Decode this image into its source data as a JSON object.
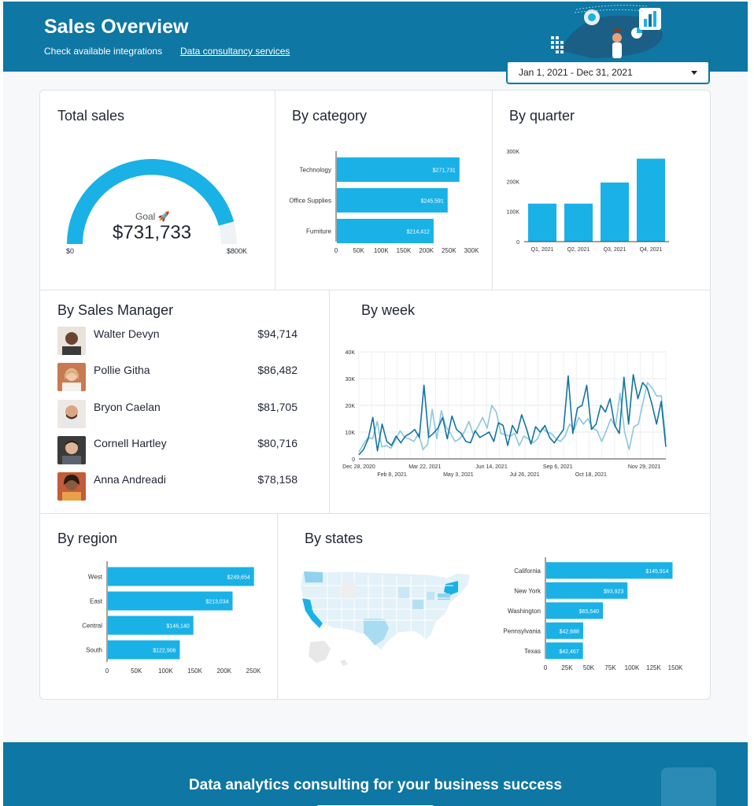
{
  "header": {
    "title": "Sales Overview",
    "link_integrations": "Check available integrations",
    "link_consultancy": "Data consultancy services"
  },
  "date_range": "Jan 1, 2021 - Dec 31, 2021",
  "colors": {
    "header": "#0e77a3",
    "bar": "#1ab1e6",
    "line_dark": "#1275a0",
    "line_light": "#8cc6dc"
  },
  "total_sales": {
    "title": "Total sales",
    "goal_label": "Goal",
    "value": "$731,733",
    "min_label": "$0",
    "max_label": "$800K",
    "progress": 0.9147
  },
  "chart_data": [
    {
      "type": "bar",
      "orientation": "horizontal",
      "title": "By category",
      "categories": [
        "Technology",
        "Office Supplies",
        "Furniture"
      ],
      "values": [
        271731,
        245591,
        214412
      ],
      "value_labels": [
        "$271,731",
        "$245,591",
        "$214,412"
      ],
      "xlim": [
        0,
        300000
      ],
      "x_ticks": [
        "0",
        "50K",
        "100K",
        "150K",
        "200K",
        "250K",
        "300K"
      ]
    },
    {
      "type": "bar",
      "title": "By quarter",
      "categories": [
        "Q1, 2021",
        "Q2, 2021",
        "Q3, 2021",
        "Q4, 2021"
      ],
      "values": [
        126000,
        126000,
        196000,
        275000
      ],
      "ylim": [
        0,
        300000
      ],
      "y_ticks": [
        "0",
        "100K",
        "200K",
        "300K"
      ]
    },
    {
      "type": "line",
      "title": "By week",
      "ylim": [
        0,
        40000
      ],
      "y_ticks": [
        "0",
        "10K",
        "20K",
        "30K",
        "40K"
      ],
      "x_ticks_top": [
        "Dec 28, 2020",
        "Mar 22, 2021",
        "Jun 14, 2021",
        "Sep 6, 2021",
        "Nov 29, 2021"
      ],
      "x_ticks_bottom": [
        "Feb 8, 2021",
        "May 3, 2021",
        "Jul 26, 2021",
        "Oct 18, 2021"
      ],
      "series": [
        {
          "values": [
            1500,
            3500,
            7500,
            15500,
            3000,
            13000,
            6500,
            5000,
            8500,
            6000,
            8500,
            9500,
            11000,
            8000,
            27500,
            8000,
            9500,
            11500,
            15500,
            7500,
            16000,
            11000,
            9500,
            6500,
            6000,
            10500,
            8000,
            9000,
            10000,
            6500,
            13500,
            12500,
            5000,
            12500,
            9500,
            16500,
            11500,
            5500,
            12000,
            10000,
            12500,
            8000,
            6000,
            8500,
            11000,
            31000,
            9500,
            19000,
            20000,
            27500,
            11000,
            13000,
            20000,
            17500,
            22500,
            12500,
            9500,
            30500,
            13000,
            31500,
            22500,
            28500,
            26500,
            20500,
            13000,
            21500,
            4500
          ]
        },
        {
          "values": [
            2500,
            5500,
            8000,
            7500,
            14000,
            4500,
            5000,
            4000,
            7000,
            10500,
            8000,
            7500,
            6500,
            9500,
            3500,
            5500,
            18500,
            7500,
            18000,
            12000,
            9500,
            6500,
            7500,
            10000,
            14000,
            9000,
            12000,
            15500,
            11500,
            20000,
            17500,
            9500,
            9000,
            8500,
            9500,
            5000,
            8500,
            7500,
            6000,
            7500,
            11500,
            10000,
            9500,
            7500,
            6500,
            8500,
            13000,
            11000,
            15500,
            13000,
            15000,
            11500,
            10500,
            6500,
            10500,
            15000,
            12000,
            24500,
            10000,
            3500,
            12000,
            13000,
            21000,
            28500,
            26500,
            23500,
            23500,
            7000
          ]
        }
      ]
    },
    {
      "type": "bar",
      "orientation": "horizontal",
      "title": "By region",
      "categories": [
        "West",
        "East",
        "Central",
        "South"
      ],
      "values": [
        249654,
        213034,
        146140,
        122906
      ],
      "value_labels": [
        "$249,654",
        "$213,034",
        "$146,140",
        "$122,906"
      ],
      "xlim": [
        0,
        250000
      ],
      "x_ticks": [
        "0",
        "50K",
        "100K",
        "150K",
        "200K",
        "250K"
      ]
    },
    {
      "type": "bar",
      "orientation": "horizontal",
      "title": "By states",
      "categories": [
        "California",
        "New York",
        "Washington",
        "Pennsylvania",
        "Texas"
      ],
      "values": [
        145914,
        93923,
        65540,
        42688,
        42467
      ],
      "value_labels": [
        "$145,914",
        "$93,923",
        "$65,540",
        "$42,688",
        "$42,467"
      ],
      "xlim": [
        0,
        150000
      ],
      "x_ticks": [
        "0",
        "25K",
        "50K",
        "75K",
        "100K",
        "125K",
        "150K"
      ]
    }
  ],
  "sales_managers": {
    "title": "By Sales Manager",
    "items": [
      {
        "name": "Walter Devyn",
        "value": "$94,714"
      },
      {
        "name": "Pollie Githa",
        "value": "$86,482"
      },
      {
        "name": "Bryon Caelan",
        "value": "$81,705"
      },
      {
        "name": "Cornell Hartley",
        "value": "$80,716"
      },
      {
        "name": "Anna Andreadi",
        "value": "$78,158"
      }
    ]
  },
  "footer": {
    "title": "Data analytics consulting for your business success"
  }
}
